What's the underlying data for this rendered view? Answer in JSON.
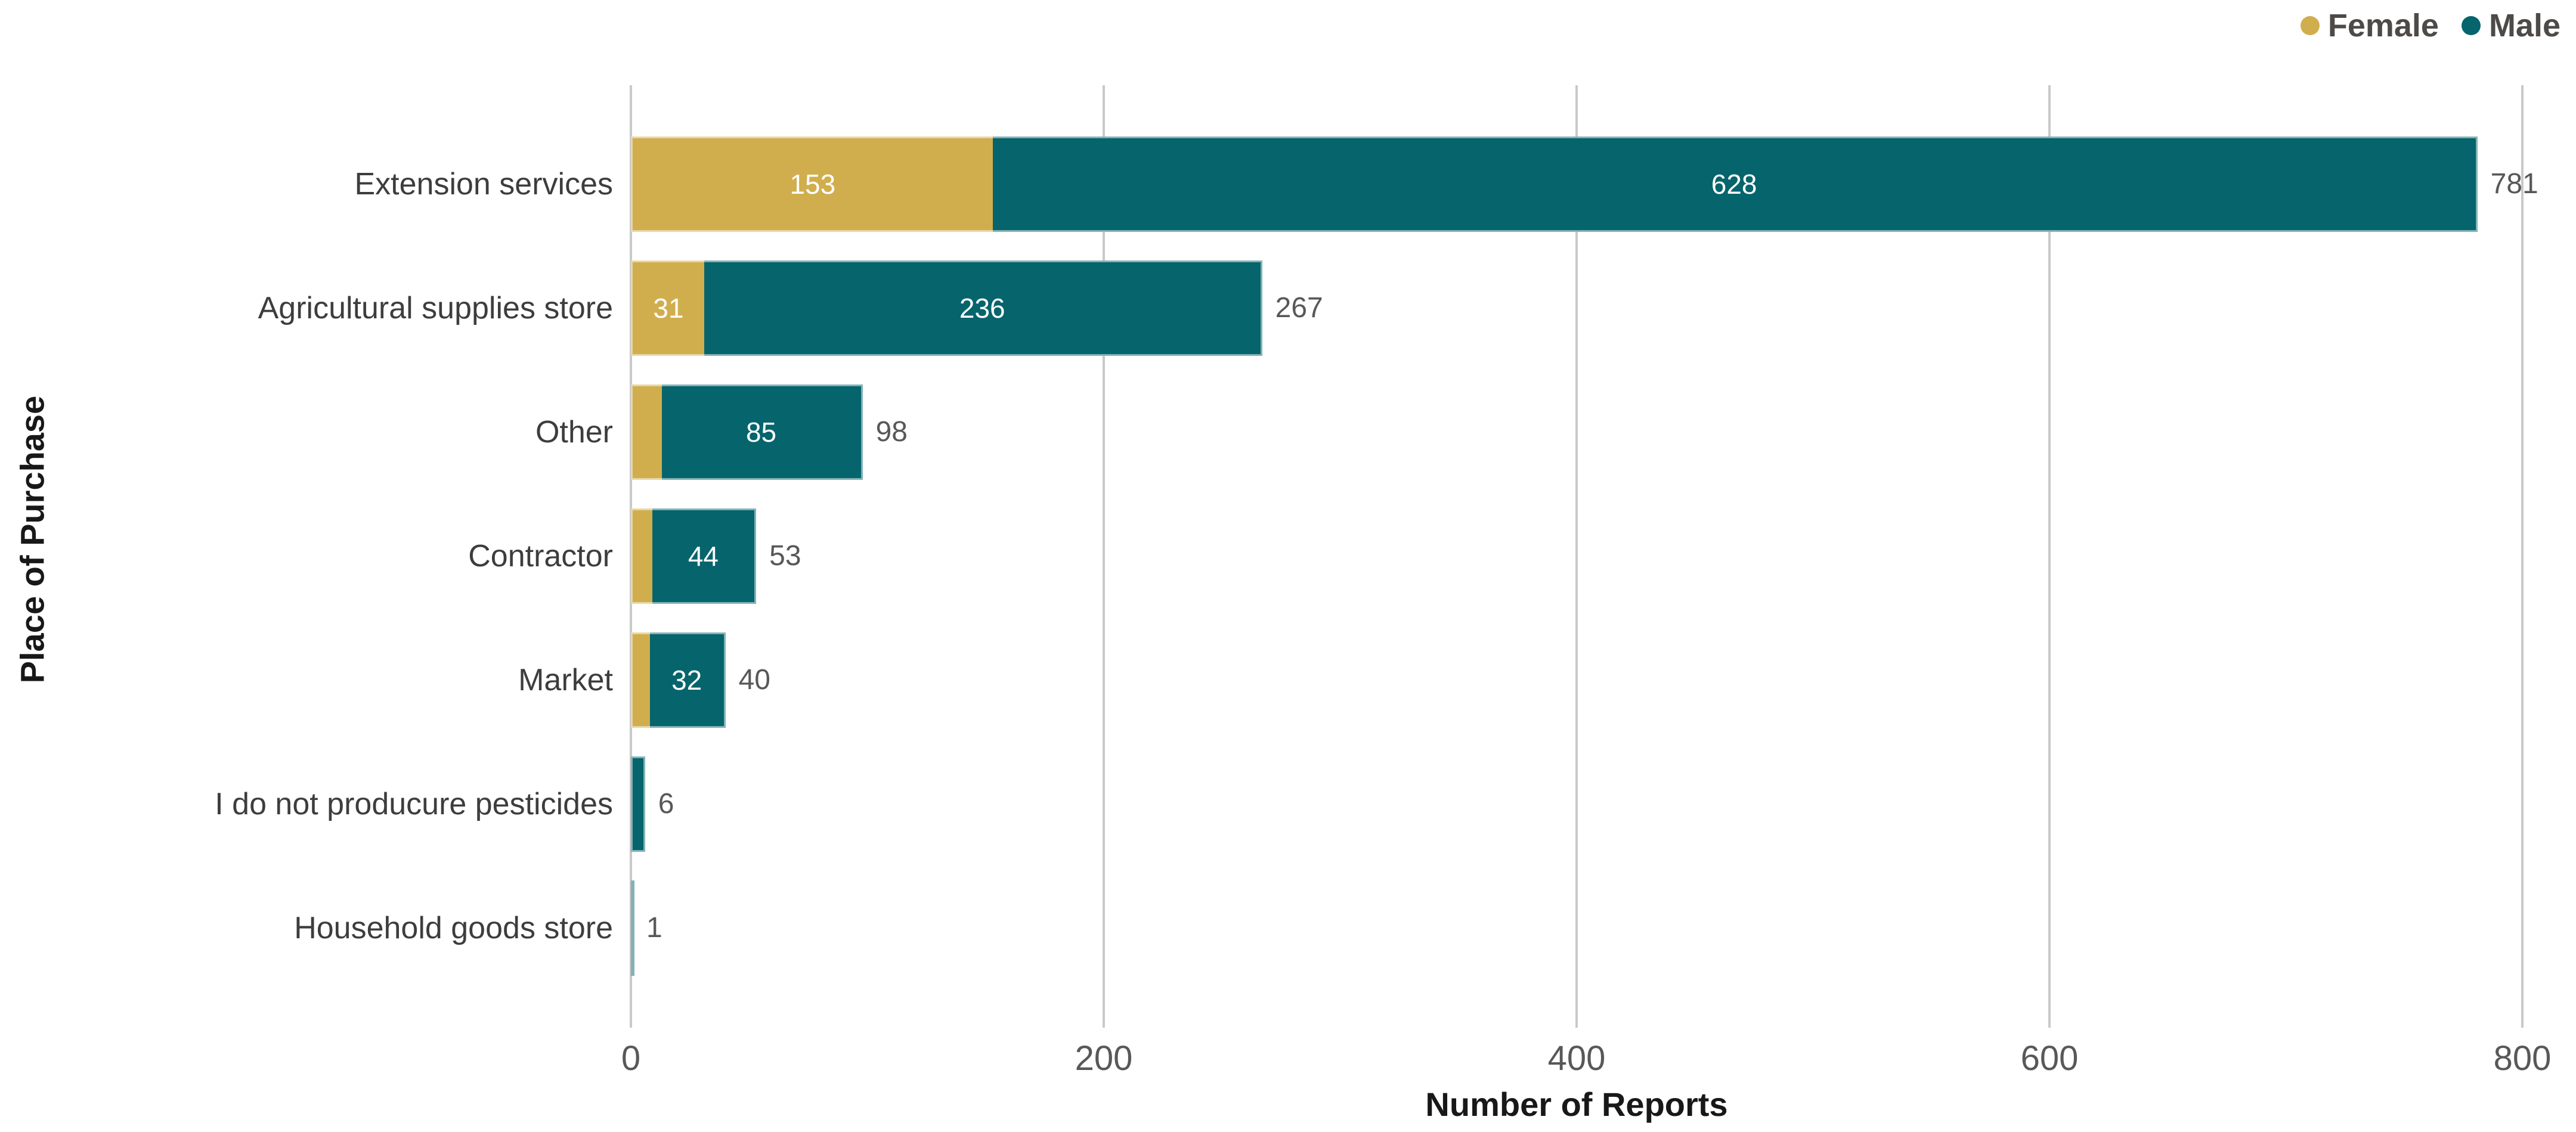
{
  "legend": {
    "items": [
      {
        "key": "female",
        "label": "Female",
        "color": "#D0AE4D"
      },
      {
        "key": "male",
        "label": "Male",
        "color": "#05646C"
      }
    ]
  },
  "chart_data": {
    "type": "bar",
    "orientation": "horizontal",
    "stacked": true,
    "title": "",
    "xlabel": "Number of Reports",
    "ylabel": "Place of Purchase",
    "xlim": [
      0,
      800
    ],
    "xticks": [
      "0",
      "200",
      "400",
      "600",
      "800"
    ],
    "grid": true,
    "legend_position": "top-right",
    "categories": [
      "Extension services",
      "Agricultural supplies store",
      "Other",
      "Contractor",
      "Market",
      "I do not producure pesticides",
      "Household goods store"
    ],
    "series": [
      {
        "name": "Female",
        "color": "#D0AE4D",
        "values": [
          153,
          31,
          13,
          9,
          8,
          0,
          0
        ]
      },
      {
        "name": "Male",
        "color": "#05646C",
        "values": [
          628,
          236,
          85,
          44,
          32,
          6,
          1
        ]
      }
    ],
    "totals": [
      781,
      267,
      98,
      53,
      40,
      6,
      1
    ],
    "colors": {
      "gridline": "#C9C9C9",
      "tick_text": "#58585A",
      "category_text": "#3D3D3D",
      "total_text": "#58585A",
      "bar_value_text": "#FFFFFF",
      "axis_title_text": "#181818",
      "legend_text": "#4D4A47"
    }
  }
}
